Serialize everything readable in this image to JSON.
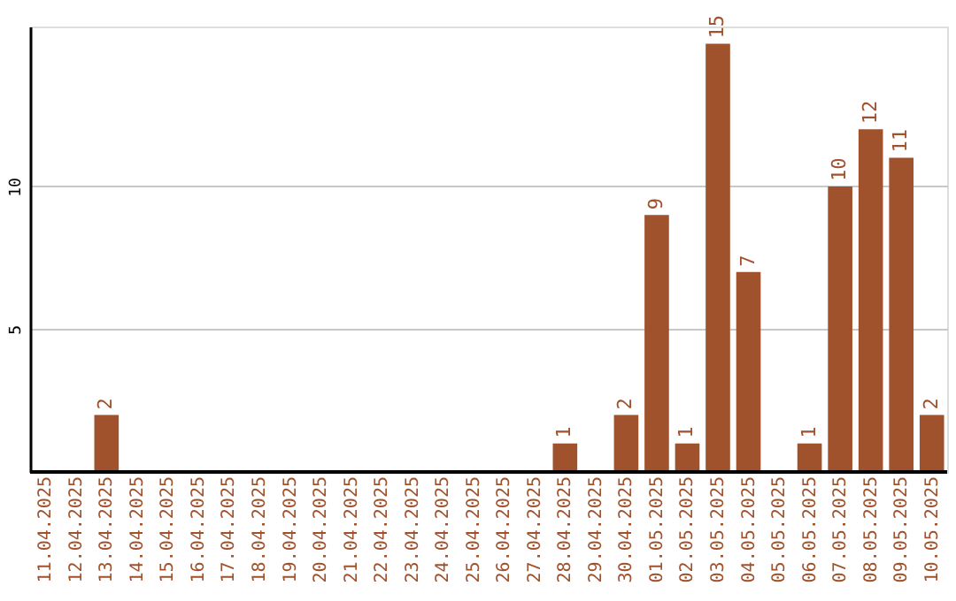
{
  "chart_data": {
    "type": "bar",
    "categories": [
      "11.04.2025",
      "12.04.2025",
      "13.04.2025",
      "14.04.2025",
      "15.04.2025",
      "16.04.2025",
      "17.04.2025",
      "18.04.2025",
      "19.04.2025",
      "20.04.2025",
      "21.04.2025",
      "22.04.2025",
      "23.04.2025",
      "24.04.2025",
      "25.04.2025",
      "26.04.2025",
      "27.04.2025",
      "28.04.2025",
      "29.04.2025",
      "30.04.2025",
      "01.05.2025",
      "02.05.2025",
      "03.05.2025",
      "04.05.2025",
      "05.05.2025",
      "06.05.2025",
      "07.05.2025",
      "08.05.2025",
      "09.05.2025",
      "10.05.2025"
    ],
    "values": [
      null,
      null,
      2,
      null,
      null,
      null,
      null,
      null,
      null,
      null,
      null,
      null,
      null,
      null,
      null,
      null,
      null,
      1,
      null,
      2,
      9,
      1,
      15,
      7,
      null,
      1,
      10,
      12,
      11,
      2
    ],
    "color": "#a0522d",
    "ylim": [
      0,
      15.6
    ],
    "yticks": [
      5,
      10
    ],
    "grid": "y",
    "data_labels": true
  }
}
